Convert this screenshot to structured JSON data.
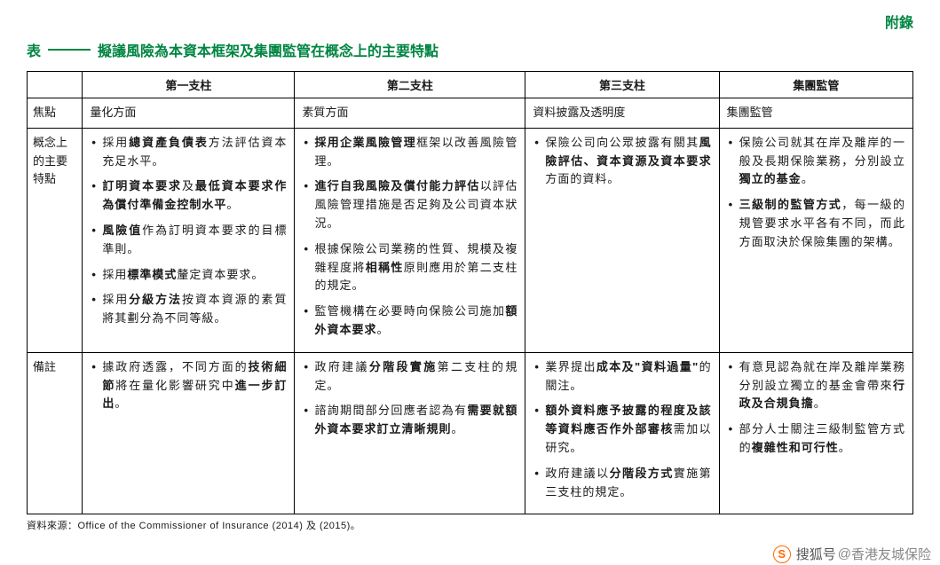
{
  "appendix": "附錄",
  "title_prefix": "表",
  "title_main": "擬議風險為本資本框架及集團監管在概念上的主要特點",
  "headers": {
    "blank": "",
    "c1": "第一支柱",
    "c2": "第二支柱",
    "c3": "第三支柱",
    "c4": "集團監管"
  },
  "row_focus_label": "焦點",
  "row_focus": {
    "c1": "量化方面",
    "c2": "素質方面",
    "c3": "資料披露及透明度",
    "c4": "集團監管"
  },
  "row_concept_label": "概念上的主要特點",
  "row_remark_label": "備註",
  "source": "資料來源：Office of the Commissioner of Insurance (2014) 及 (2015)。",
  "watermark": {
    "brand": "搜狐号",
    "at": "@",
    "acct": "香港友城保险"
  }
}
